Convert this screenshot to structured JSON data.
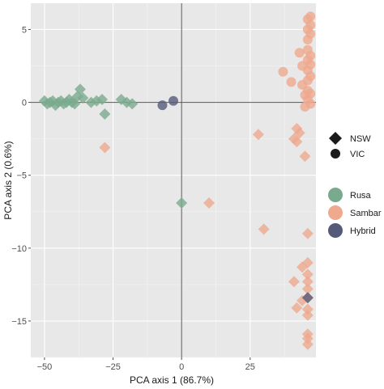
{
  "chart_data": {
    "type": "scatter",
    "title": "",
    "xlabel": "PCA axis 1 (86.7%)",
    "ylabel": "PCA axis 2 (0.6%)",
    "xlim": [
      -55,
      49
    ],
    "ylim": [
      -17.5,
      6.8
    ],
    "x_ticks": [
      -50,
      -25,
      0,
      25
    ],
    "x_tick_labels": [
      "−50",
      "−25",
      "0",
      "25"
    ],
    "y_ticks": [
      5,
      0,
      -5,
      -10,
      -15
    ],
    "y_tick_labels": [
      "5",
      "0",
      "−5",
      "−10",
      "−15"
    ],
    "grid": true,
    "reference_lines": {
      "x": 0,
      "y": 0
    },
    "legend_position": "right",
    "shape_legend": [
      {
        "label": "NSW",
        "shape": "diamond"
      },
      {
        "label": "VIC",
        "shape": "circle"
      }
    ],
    "color_legend": [
      {
        "label": "Rusa",
        "color": "#7aaa8e"
      },
      {
        "label": "Sambar",
        "color": "#eea98e"
      },
      {
        "label": "Hybrid",
        "color": "#555a78"
      }
    ],
    "series": [
      {
        "name": "Rusa",
        "color": "#7aaa8e",
        "shape": "diamond",
        "points": [
          [
            -50,
            0.1
          ],
          [
            -49,
            -0.1
          ],
          [
            -48,
            0
          ],
          [
            -47,
            0.1
          ],
          [
            -46,
            -0.2
          ],
          [
            -45,
            0
          ],
          [
            -44,
            0.1
          ],
          [
            -43,
            -0.1
          ],
          [
            -42,
            0
          ],
          [
            -41,
            0.2
          ],
          [
            -40,
            0
          ],
          [
            -39,
            -0.1
          ],
          [
            -38,
            0.4
          ],
          [
            -37,
            0.9
          ],
          [
            -36,
            0.3
          ],
          [
            -33,
            0
          ],
          [
            -31,
            0.1
          ],
          [
            -29,
            0.2
          ],
          [
            -28,
            -0.8
          ],
          [
            -22,
            0.2
          ],
          [
            -20,
            0
          ],
          [
            -18,
            -0.1
          ],
          [
            0,
            -6.9
          ]
        ]
      },
      {
        "name": "Sambar",
        "color": "#eea98e",
        "shape": "diamond",
        "points": [
          [
            -28,
            -3.1
          ],
          [
            10,
            -6.9
          ],
          [
            28,
            -2.2
          ],
          [
            30,
            -8.7
          ],
          [
            41,
            -2.5
          ],
          [
            42,
            -2.7
          ],
          [
            43,
            -2.1
          ],
          [
            42,
            -1.8
          ],
          [
            44,
            -11.3
          ],
          [
            41,
            -12.3
          ],
          [
            42,
            -14.1
          ],
          [
            44,
            -13.6
          ],
          [
            45,
            -3.7
          ],
          [
            46,
            -9
          ],
          [
            46,
            -11
          ],
          [
            46,
            -11.8
          ],
          [
            46,
            -12.3
          ],
          [
            46,
            -12.8
          ],
          [
            46,
            -13.4
          ],
          [
            46,
            -14.2
          ],
          [
            46,
            -14.6
          ],
          [
            46,
            -15.9
          ],
          [
            46,
            -16.2
          ],
          [
            46,
            -16.6
          ]
        ]
      },
      {
        "name": "Sambar",
        "color": "#eea98e",
        "shape": "circle",
        "points": [
          [
            37,
            2.1
          ],
          [
            40,
            1.4
          ],
          [
            43,
            3.4
          ],
          [
            44,
            1.2
          ],
          [
            45,
            0.5
          ],
          [
            46,
            0.2
          ],
          [
            46,
            0.8
          ],
          [
            46,
            1.5
          ],
          [
            46,
            2.2
          ],
          [
            46,
            2.9
          ],
          [
            46,
            3.6
          ],
          [
            46,
            4.3
          ],
          [
            46,
            5
          ],
          [
            46,
            5.7
          ],
          [
            47,
            -0.1
          ],
          [
            47,
            0.6
          ],
          [
            47,
            1.8
          ],
          [
            47,
            2.6
          ],
          [
            47,
            3.2
          ],
          [
            47,
            4.7
          ],
          [
            47,
            5.3
          ],
          [
            47,
            5.9
          ],
          [
            45,
            -0.3
          ],
          [
            44,
            2.5
          ]
        ]
      },
      {
        "name": "Hybrid",
        "color": "#555a78",
        "shape": "circle",
        "points": [
          [
            -3,
            0.1
          ],
          [
            -7,
            -0.2
          ]
        ]
      },
      {
        "name": "Hybrid",
        "color": "#555a78",
        "shape": "diamond",
        "points": [
          [
            46,
            -13.4
          ]
        ]
      }
    ]
  }
}
